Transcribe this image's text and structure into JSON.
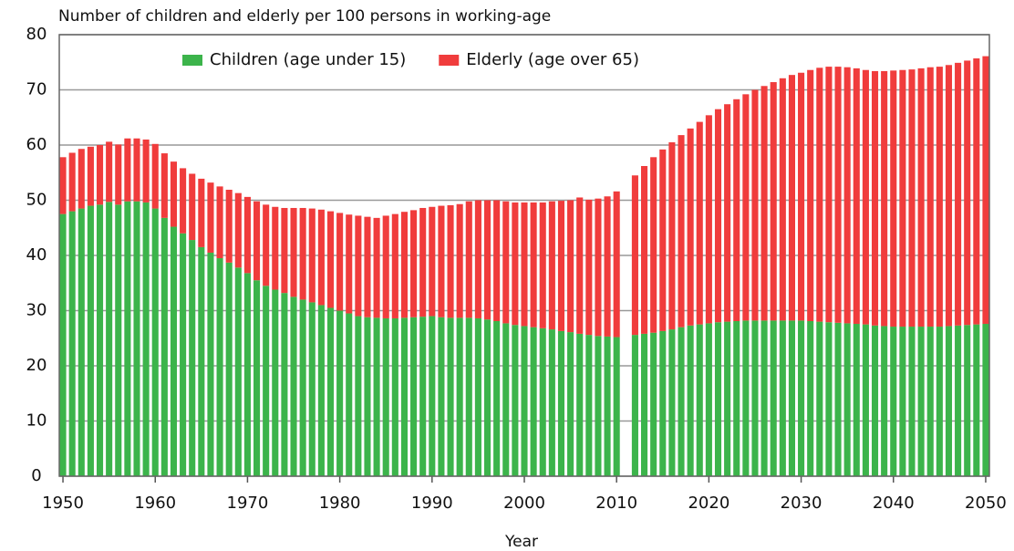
{
  "chart_data": {
    "type": "stacked_bar",
    "title": "Number of children and elderly per 100 persons in working-age",
    "x_label": "Year",
    "x": [
      1950,
      1951,
      1952,
      1953,
      1954,
      1955,
      1956,
      1957,
      1958,
      1959,
      1960,
      1961,
      1962,
      1963,
      1964,
      1965,
      1966,
      1967,
      1968,
      1969,
      1970,
      1971,
      1972,
      1973,
      1974,
      1975,
      1976,
      1977,
      1978,
      1979,
      1980,
      1981,
      1982,
      1983,
      1984,
      1985,
      1986,
      1987,
      1988,
      1989,
      1990,
      1991,
      1992,
      1993,
      1994,
      1995,
      1996,
      1997,
      1998,
      1999,
      2000,
      2001,
      2002,
      2003,
      2004,
      2005,
      2006,
      2007,
      2008,
      2009,
      2010,
      2011,
      2012,
      2013,
      2014,
      2015,
      2016,
      2017,
      2018,
      2019,
      2020,
      2021,
      2022,
      2023,
      2024,
      2025,
      2026,
      2027,
      2028,
      2029,
      2030,
      2031,
      2032,
      2033,
      2034,
      2035,
      2036,
      2037,
      2038,
      2039,
      2040,
      2041,
      2042,
      2043,
      2044,
      2045,
      2046,
      2047,
      2048,
      2049,
      2050
    ],
    "series": [
      {
        "name": "Children (age under 15)",
        "color": "#3cb44b",
        "values": [
          47.5,
          48,
          48.5,
          49,
          49.2,
          49.7,
          49.2,
          49.8,
          49.8,
          49.6,
          48.5,
          46.8,
          45.2,
          44,
          42.8,
          41.5,
          40.5,
          39.5,
          38.7,
          37.8,
          36.8,
          35.5,
          34.5,
          33.8,
          33.2,
          32.5,
          32,
          31.5,
          31,
          30.5,
          30,
          29.5,
          29,
          28.8,
          28.7,
          28.6,
          28.6,
          28.7,
          28.8,
          28.9,
          29,
          28.8,
          28.7,
          28.7,
          28.7,
          28.6,
          28.4,
          28.1,
          27.7,
          27.4,
          27.2,
          27,
          26.8,
          26.6,
          26.3,
          26.1,
          25.8,
          25.6,
          25.4,
          25.3,
          25.2,
          null,
          25.6,
          25.8,
          26,
          26.3,
          26.6,
          27,
          27.3,
          27.5,
          27.7,
          27.9,
          28,
          28.1,
          28.2,
          28.2,
          28.2,
          28.2,
          28.2,
          28.2,
          28.2,
          28.1,
          28,
          27.9,
          27.8,
          27.7,
          27.6,
          27.5,
          27.3,
          27.2,
          27.1,
          27.1,
          27.1,
          27.1,
          27.1,
          27.1,
          27.2,
          27.3,
          27.4,
          27.5,
          27.6
        ]
      },
      {
        "name": "Elderly (age over 65)",
        "color": "#f03c3c",
        "values": [
          10.3,
          10.6,
          10.8,
          10.7,
          10.8,
          10.9,
          10.9,
          11.4,
          11.4,
          11.4,
          11.7,
          11.7,
          11.8,
          11.8,
          12,
          12.4,
          12.7,
          13,
          13.2,
          13.5,
          13.8,
          14.3,
          14.7,
          15,
          15.4,
          16.1,
          16.6,
          17,
          17.3,
          17.5,
          17.7,
          17.9,
          18.2,
          18.2,
          18.1,
          18.6,
          18.9,
          19.2,
          19.4,
          19.7,
          19.8,
          20.2,
          20.4,
          20.6,
          21.1,
          21.4,
          21.6,
          21.9,
          22.1,
          22.2,
          22.4,
          22.6,
          22.8,
          23.2,
          23.6,
          23.9,
          24.7,
          24.5,
          24.9,
          25.4,
          26.4,
          null,
          28.9,
          30.4,
          31.8,
          32.9,
          33.9,
          34.8,
          35.7,
          36.7,
          37.7,
          38.6,
          39.4,
          40.2,
          41,
          41.8,
          42.5,
          43.2,
          43.9,
          44.5,
          44.9,
          45.5,
          46,
          46.3,
          46.4,
          46.4,
          46.3,
          46.1,
          46.1,
          46.2,
          46.4,
          46.5,
          46.6,
          46.8,
          47,
          47.1,
          47.3,
          47.6,
          47.9,
          48.2,
          48.5
        ]
      }
    ],
    "xlim": [
      1949.6,
      2050.4
    ],
    "xticks": [
      1950,
      1960,
      1970,
      1980,
      1990,
      2000,
      2010,
      2020,
      2030,
      2040,
      2050
    ],
    "ylim": [
      0,
      80
    ],
    "yticks": [
      0,
      10,
      20,
      30,
      40,
      50,
      60,
      70,
      80
    ],
    "grid": true,
    "legend": "top"
  }
}
